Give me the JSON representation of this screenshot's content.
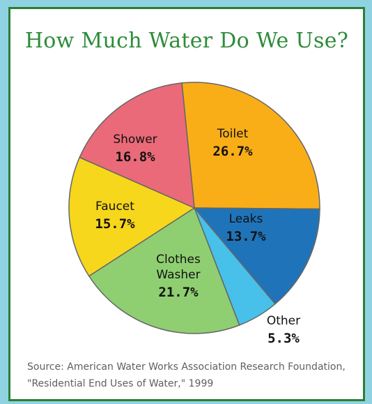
{
  "chart_data": {
    "type": "pie",
    "title": "How Much Water Do We Use?",
    "slices": [
      {
        "name": "Toilet",
        "value": 26.7,
        "label": "26.7%",
        "color": "#f9ae18"
      },
      {
        "name": "Leaks",
        "value": 13.7,
        "label": "13.7%",
        "color": "#1f74b9"
      },
      {
        "name": "Other",
        "value": 5.3,
        "label": "5.3%",
        "color": "#47c0ea"
      },
      {
        "name": "Clothes Washer",
        "value": 21.7,
        "label": "21.7%",
        "color": "#8fcf72"
      },
      {
        "name": "Faucet",
        "value": 15.7,
        "label": "15.7%",
        "color": "#f6d71b"
      },
      {
        "name": "Shower",
        "value": 16.8,
        "label": "16.8%",
        "color": "#ea6a79"
      }
    ],
    "legend": "none"
  },
  "source": "Source: American Water Works Association Research Foundation, \"Residential End Uses of Water,\" 1999"
}
